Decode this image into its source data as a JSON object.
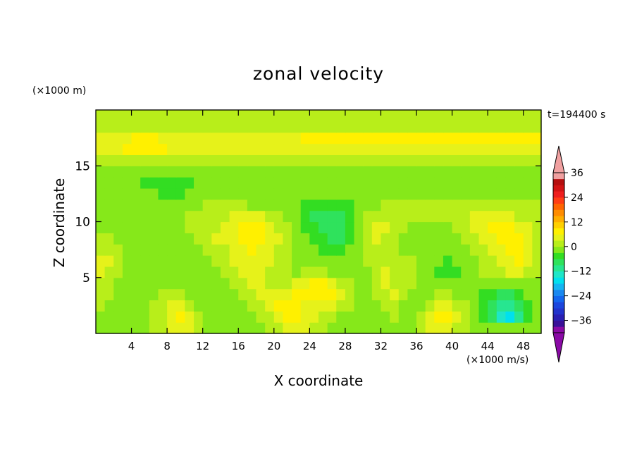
{
  "chart_data": {
    "type": "heatmap",
    "title": "zonal velocity",
    "xlabel": "X coordinate",
    "ylabel": "Z coordinate",
    "x_unit": "(×1000 m/s)",
    "z_unit": "(×1000 m)",
    "time_label": "t=194400 s",
    "xlim": [
      0,
      50
    ],
    "ylim": [
      0,
      20
    ],
    "x_ticks": [
      4,
      8,
      12,
      16,
      20,
      24,
      28,
      32,
      36,
      40,
      44,
      48
    ],
    "y_ticks": [
      5,
      10,
      15
    ],
    "colorbar": {
      "levels": [
        -42,
        -39,
        -36,
        -33,
        -30,
        -27,
        -24,
        -21,
        -18,
        -15,
        -12,
        -9,
        -6,
        -3,
        0,
        3,
        6,
        9,
        12,
        15,
        18,
        21,
        24,
        27,
        30,
        33,
        36,
        39,
        42
      ],
      "colors": [
        "#8a0aa6",
        "#3a1199",
        "#2a1fb3",
        "#2233cc",
        "#1c46dd",
        "#1466ee",
        "#1a88f0",
        "#14b4f2",
        "#00e0ee",
        "#1ee6c8",
        "#27e690",
        "#2fe25c",
        "#33dd22",
        "#86e81a",
        "#b8ee1a",
        "#e6f21a",
        "#fff000",
        "#ffd000",
        "#ffae00",
        "#ff8c00",
        "#ff6400",
        "#ff3c14",
        "#ee1e1e",
        "#d21414",
        "#b40f0f",
        "#f0a0a0"
      ],
      "tick_labels": [
        "-36",
        "-24",
        "-12",
        "0",
        "12",
        "24",
        "36"
      ],
      "under_color": "#8a0aa6",
      "over_color": "#f0a0a0"
    },
    "nx": 50,
    "nz": 20,
    "values": [
      [
        -3.0,
        -3.0,
        -3.0,
        -3.0,
        -3.0,
        -3.0,
        0.0,
        1.5,
        3.0,
        3.0,
        3.0,
        0.0,
        -3.0,
        -3.0,
        -3.0,
        -3.0,
        -3.0,
        -3.0,
        -3.0,
        0.0,
        1.5,
        3.0,
        3.0,
        3.0,
        1.5,
        0.0,
        -3.0,
        -3.0,
        -3.0,
        -3.0,
        -3.0,
        -3.0,
        -3.0,
        -3.0,
        -3.0,
        -3.0,
        0.0,
        3.0,
        3.0,
        3.0,
        1.5,
        0.0,
        -3.0,
        -3.0,
        -3.0,
        -3.0,
        -3.0,
        -3.0,
        -3.0,
        -3.0
      ],
      [
        -1.5,
        -3.0,
        -3.0,
        -3.0,
        -3.0,
        -1.5,
        0.0,
        1.5,
        3.0,
        6.0,
        3.0,
        0.0,
        -3.0,
        -3.0,
        -3.0,
        -3.0,
        -3.0,
        -1.5,
        0.0,
        1.5,
        3.0,
        6.0,
        6.0,
        3.0,
        3.0,
        1.5,
        0.0,
        -1.5,
        -3.0,
        -3.0,
        -3.0,
        -3.0,
        -1.5,
        0.0,
        -3.0,
        -3.0,
        0.0,
        3.0,
        6.0,
        6.0,
        3.0,
        0.0,
        -3.0,
        -6.0,
        -9.0,
        -15.0,
        -18.0,
        -12.0,
        -6.0,
        -3.0
      ],
      [
        0.0,
        -1.5,
        -3.0,
        -3.0,
        -3.0,
        -1.5,
        0.0,
        1.5,
        3.0,
        3.0,
        0.0,
        -1.5,
        -3.0,
        -3.0,
        -3.0,
        -3.0,
        -1.5,
        0.0,
        1.5,
        3.0,
        6.0,
        6.0,
        6.0,
        3.0,
        3.0,
        3.0,
        3.0,
        1.5,
        0.0,
        -3.0,
        -3.0,
        -1.5,
        0.0,
        1.5,
        -1.5,
        -3.0,
        -3.0,
        0.0,
        3.0,
        3.0,
        1.5,
        0.0,
        -3.0,
        -6.0,
        -9.0,
        -12.0,
        -12.0,
        -9.0,
        -6.0,
        -3.0
      ],
      [
        0.0,
        0.0,
        -3.0,
        -3.0,
        -3.0,
        -3.0,
        -1.5,
        0.0,
        0.0,
        0.0,
        -1.5,
        -3.0,
        -3.0,
        -3.0,
        -3.0,
        -1.5,
        0.0,
        1.5,
        3.0,
        3.0,
        3.0,
        3.0,
        6.0,
        6.0,
        6.0,
        6.0,
        6.0,
        3.0,
        0.0,
        -3.0,
        -3.0,
        0.0,
        1.5,
        3.0,
        0.0,
        -1.5,
        -3.0,
        -3.0,
        0.0,
        0.0,
        -1.5,
        -3.0,
        -3.0,
        -6.0,
        -6.0,
        -9.0,
        -9.0,
        -6.0,
        -3.0,
        -3.0
      ],
      [
        1.5,
        0.0,
        -1.5,
        -3.0,
        -3.0,
        -3.0,
        -3.0,
        -1.5,
        -3.0,
        -3.0,
        -3.0,
        -3.0,
        -3.0,
        -3.0,
        -3.0,
        0.0,
        1.5,
        3.0,
        3.0,
        1.5,
        0.0,
        1.5,
        3.0,
        3.0,
        6.0,
        6.0,
        3.0,
        1.5,
        0.0,
        -3.0,
        -1.5,
        0.0,
        3.0,
        1.5,
        0.0,
        0.0,
        -1.5,
        -3.0,
        -3.0,
        -3.0,
        -3.0,
        -3.0,
        -1.5,
        -1.5,
        -3.0,
        -3.0,
        -3.0,
        -3.0,
        -1.5,
        -1.5
      ],
      [
        3.0,
        1.5,
        0.0,
        -3.0,
        -3.0,
        -3.0,
        -3.0,
        -3.0,
        -3.0,
        -3.0,
        -3.0,
        -3.0,
        -3.0,
        -3.0,
        0.0,
        1.5,
        3.0,
        3.0,
        3.0,
        1.5,
        0.0,
        0.0,
        -1.5,
        0.0,
        0.0,
        0.0,
        -1.5,
        -3.0,
        -3.0,
        -3.0,
        -3.0,
        1.5,
        3.0,
        0.0,
        0.0,
        0.0,
        -1.5,
        -3.0,
        -6.0,
        -6.0,
        -6.0,
        -3.0,
        -1.5,
        0.0,
        0.0,
        1.5,
        3.0,
        3.0,
        1.5,
        0.0
      ],
      [
        3.0,
        3.0,
        0.0,
        -3.0,
        -3.0,
        -3.0,
        -3.0,
        -3.0,
        -3.0,
        -3.0,
        -3.0,
        -3.0,
        -1.5,
        0.0,
        1.5,
        3.0,
        3.0,
        3.0,
        3.0,
        3.0,
        1.5,
        0.0,
        -1.5,
        -3.0,
        -3.0,
        -3.0,
        -3.0,
        -3.0,
        -3.0,
        -3.0,
        0.0,
        1.5,
        1.5,
        0.0,
        0.0,
        0.0,
        -1.5,
        -3.0,
        -3.0,
        -6.0,
        -3.0,
        -3.0,
        -1.5,
        0.0,
        1.5,
        3.0,
        3.0,
        6.0,
        3.0,
        1.5
      ],
      [
        1.5,
        1.5,
        0.0,
        -1.5,
        -3.0,
        -3.0,
        -3.0,
        -3.0,
        -3.0,
        -3.0,
        -3.0,
        -1.5,
        0.0,
        1.5,
        1.5,
        3.0,
        3.0,
        6.0,
        3.0,
        3.0,
        1.5,
        0.0,
        -3.0,
        -3.0,
        -3.0,
        -6.0,
        -6.0,
        -6.0,
        -3.0,
        -3.0,
        1.5,
        1.5,
        1.5,
        0.0,
        -1.5,
        -1.5,
        -3.0,
        -3.0,
        -3.0,
        -3.0,
        -3.0,
        -1.5,
        0.0,
        1.5,
        3.0,
        3.0,
        6.0,
        6.0,
        3.0,
        1.5
      ],
      [
        0.0,
        0.0,
        -1.5,
        -3.0,
        -3.0,
        -3.0,
        -3.0,
        -3.0,
        -3.0,
        -3.0,
        -1.5,
        0.0,
        1.5,
        3.0,
        3.0,
        3.0,
        6.0,
        6.0,
        6.0,
        3.0,
        3.0,
        0.0,
        -3.0,
        -3.0,
        -6.0,
        -6.0,
        -9.0,
        -9.0,
        -6.0,
        -3.0,
        0.0,
        3.0,
        1.5,
        0.0,
        -1.5,
        -3.0,
        -3.0,
        -3.0,
        -3.0,
        -3.0,
        -1.5,
        0.0,
        1.5,
        3.0,
        3.0,
        6.0,
        6.0,
        6.0,
        3.0,
        1.5
      ],
      [
        -1.5,
        -3.0,
        -3.0,
        -3.0,
        -3.0,
        -3.0,
        -3.0,
        -3.0,
        -3.0,
        -1.5,
        0.0,
        1.5,
        1.5,
        1.5,
        3.0,
        3.0,
        6.0,
        6.0,
        6.0,
        3.0,
        1.5,
        0.0,
        -3.0,
        -6.0,
        -6.0,
        -9.0,
        -9.0,
        -9.0,
        -6.0,
        -3.0,
        0.0,
        3.0,
        3.0,
        1.5,
        0.0,
        -1.5,
        -3.0,
        -3.0,
        -3.0,
        -1.5,
        0.0,
        1.5,
        3.0,
        3.0,
        6.0,
        6.0,
        6.0,
        3.0,
        3.0,
        1.5
      ],
      [
        -3.0,
        -3.0,
        -3.0,
        -3.0,
        -3.0,
        -3.0,
        -3.0,
        -3.0,
        -3.0,
        -1.5,
        0.0,
        1.5,
        1.5,
        0.0,
        1.5,
        3.0,
        3.0,
        3.0,
        3.0,
        1.5,
        0.0,
        -3.0,
        -3.0,
        -6.0,
        -9.0,
        -9.0,
        -9.0,
        -9.0,
        -6.0,
        -3.0,
        0.0,
        1.5,
        1.5,
        1.5,
        1.5,
        1.5,
        0.0,
        0.0,
        1.5,
        1.5,
        1.5,
        1.5,
        3.0,
        3.0,
        3.0,
        3.0,
        3.0,
        1.5,
        1.5,
        1.5
      ],
      [
        -3.0,
        -3.0,
        -3.0,
        -3.0,
        -3.0,
        -3.0,
        -3.0,
        -3.0,
        -3.0,
        -3.0,
        -3.0,
        -1.5,
        0.0,
        0.0,
        0.0,
        0.0,
        0.0,
        -1.5,
        -3.0,
        -3.0,
        -3.0,
        -3.0,
        -3.0,
        -6.0,
        -6.0,
        -6.0,
        -6.0,
        -6.0,
        -6.0,
        -3.0,
        -3.0,
        -1.5,
        0.0,
        0.0,
        0.0,
        0.0,
        0.0,
        0.0,
        0.0,
        0.0,
        0.0,
        0.0,
        0.0,
        0.0,
        0.0,
        0.0,
        0.0,
        0.0,
        0.0,
        0.0
      ],
      [
        -3.0,
        -3.0,
        -3.0,
        -3.0,
        -3.0,
        -3.0,
        -3.0,
        -6.0,
        -6.0,
        -6.0,
        -3.0,
        -3.0,
        -3.0,
        -3.0,
        -3.0,
        -3.0,
        -3.0,
        -3.0,
        -3.0,
        -3.0,
        -3.0,
        -3.0,
        -3.0,
        -3.0,
        -3.0,
        -3.0,
        -3.0,
        -3.0,
        -3.0,
        -3.0,
        -3.0,
        -3.0,
        -3.0,
        -3.0,
        -3.0,
        -3.0,
        -3.0,
        -3.0,
        -3.0,
        -3.0,
        -3.0,
        -3.0,
        -3.0,
        -3.0,
        -3.0,
        -3.0,
        -3.0,
        -3.0,
        -3.0,
        -3.0
      ],
      [
        -3.0,
        -3.0,
        -3.0,
        -3.0,
        -3.0,
        -6.0,
        -6.0,
        -6.0,
        -6.0,
        -6.0,
        -6.0,
        -3.0,
        -3.0,
        -3.0,
        -3.0,
        -3.0,
        -3.0,
        -3.0,
        -3.0,
        -3.0,
        -3.0,
        -3.0,
        -3.0,
        -3.0,
        -3.0,
        -3.0,
        -3.0,
        -3.0,
        -3.0,
        -3.0,
        -3.0,
        -3.0,
        -3.0,
        -3.0,
        -3.0,
        -3.0,
        -3.0,
        -3.0,
        -3.0,
        -3.0,
        -3.0,
        -3.0,
        -3.0,
        -3.0,
        -3.0,
        -3.0,
        -3.0,
        -3.0,
        -3.0,
        -3.0
      ],
      [
        -3.0,
        -3.0,
        -3.0,
        -3.0,
        -3.0,
        -3.0,
        -3.0,
        -3.0,
        -3.0,
        -3.0,
        -3.0,
        -3.0,
        -3.0,
        -3.0,
        -3.0,
        -3.0,
        -3.0,
        -3.0,
        -3.0,
        -3.0,
        -3.0,
        -3.0,
        -3.0,
        -3.0,
        -3.0,
        -3.0,
        -3.0,
        -3.0,
        -3.0,
        -3.0,
        -3.0,
        -3.0,
        -3.0,
        -3.0,
        -3.0,
        -3.0,
        -3.0,
        -3.0,
        -3.0,
        -3.0,
        -3.0,
        -3.0,
        -3.0,
        -3.0,
        -3.0,
        -3.0,
        -3.0,
        -3.0,
        -3.0,
        -3.0
      ],
      [
        0.0,
        0.0,
        0.0,
        0.0,
        0.0,
        0.0,
        0.0,
        0.0,
        0.0,
        0.0,
        0.0,
        0.0,
        0.0,
        0.0,
        0.0,
        0.0,
        0.0,
        0.0,
        0.0,
        0.0,
        0.0,
        0.0,
        0.0,
        0.0,
        0.0,
        0.0,
        0.0,
        0.0,
        0.0,
        0.0,
        0.0,
        0.0,
        0.0,
        0.0,
        0.0,
        0.0,
        0.0,
        0.0,
        0.0,
        0.0,
        0.0,
        0.0,
        0.0,
        0.0,
        0.0,
        0.0,
        0.0,
        0.0,
        0.0,
        0.0
      ],
      [
        3.0,
        3.0,
        3.0,
        6.0,
        6.0,
        6.0,
        6.0,
        6.0,
        3.0,
        3.0,
        3.0,
        3.0,
        3.0,
        3.0,
        3.0,
        3.0,
        3.0,
        3.0,
        3.0,
        3.0,
        3.0,
        3.0,
        3.0,
        3.0,
        3.0,
        3.0,
        3.0,
        3.0,
        3.0,
        3.0,
        3.0,
        3.0,
        3.0,
        3.0,
        3.0,
        3.0,
        3.0,
        3.0,
        3.0,
        3.0,
        3.0,
        3.0,
        3.0,
        3.0,
        3.0,
        3.0,
        3.0,
        3.0,
        3.0,
        3.0
      ],
      [
        3.0,
        3.0,
        3.0,
        3.0,
        6.0,
        6.0,
        6.0,
        3.0,
        3.0,
        3.0,
        3.0,
        3.0,
        3.0,
        3.0,
        3.0,
        3.0,
        3.0,
        3.0,
        3.0,
        3.0,
        3.0,
        3.0,
        3.0,
        6.0,
        6.0,
        6.0,
        6.0,
        6.0,
        6.0,
        6.0,
        6.0,
        6.0,
        6.0,
        6.0,
        6.0,
        6.0,
        6.0,
        6.0,
        6.0,
        6.0,
        6.0,
        6.0,
        6.0,
        6.0,
        6.0,
        6.0,
        6.0,
        6.0,
        6.0,
        6.0
      ],
      [
        0.0,
        0.0,
        0.0,
        0.0,
        0.0,
        0.0,
        0.0,
        0.0,
        0.0,
        0.0,
        0.0,
        0.0,
        0.0,
        0.0,
        0.0,
        0.0,
        0.0,
        0.0,
        0.0,
        0.0,
        0.0,
        0.0,
        0.0,
        0.0,
        0.0,
        0.0,
        0.0,
        0.0,
        0.0,
        0.0,
        0.0,
        0.0,
        0.0,
        0.0,
        0.0,
        0.0,
        0.0,
        0.0,
        0.0,
        0.0,
        0.0,
        0.0,
        0.0,
        0.0,
        0.0,
        0.0,
        0.0,
        0.0,
        0.0,
        0.0
      ],
      [
        0.0,
        0.0,
        0.0,
        0.0,
        0.0,
        0.0,
        0.0,
        0.0,
        0.0,
        0.0,
        0.0,
        0.0,
        0.0,
        0.0,
        0.0,
        0.0,
        0.0,
        0.0,
        0.0,
        0.0,
        0.0,
        0.0,
        0.0,
        0.0,
        0.0,
        0.0,
        0.0,
        0.0,
        0.0,
        0.0,
        0.0,
        0.0,
        0.0,
        0.0,
        0.0,
        0.0,
        0.0,
        0.0,
        0.0,
        0.0,
        0.0,
        0.0,
        0.0,
        0.0,
        0.0,
        0.0,
        0.0,
        0.0,
        0.0,
        0.0
      ]
    ]
  }
}
